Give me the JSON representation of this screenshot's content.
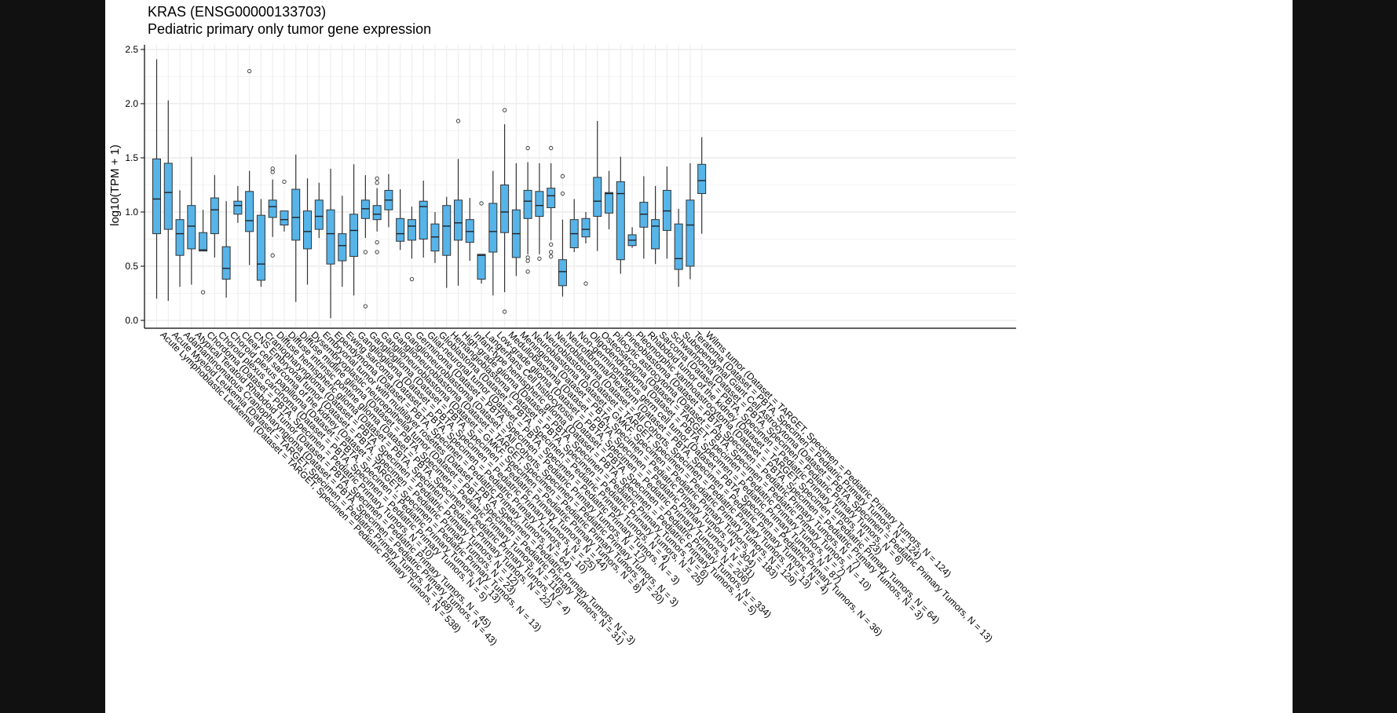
{
  "chart_data": {
    "type": "box",
    "title": "KRAS (ENSG00000133703)",
    "subtitle": "Pediatric primary only tumor gene expression",
    "ylabel": "log10(TPM + 1)",
    "xlabel": "",
    "ylim": [
      -0.05,
      2.55
    ],
    "yticks": [
      0.0,
      0.5,
      1.0,
      1.5,
      2.0,
      2.5
    ],
    "ytick_labels": [
      "0.0",
      "0.5",
      "1.0",
      "1.5",
      "2.0",
      "2.5"
    ],
    "grid": true,
    "legend": "none",
    "box_color": "#56B4E9",
    "categories": [
      "Acute Lymphoblastic Leukemia (Dataset = TARGET, Specimen = Pediatric Primary Tumors, N = 538)",
      "Acute Myeloid Leukemia (Dataset = TARGET, Specimen = Pediatric Primary Tumors, N = 168)",
      "Adamantinomatous Craniopharyngioma (Dataset = PBTA, Specimen = Pediatric Primary Tumors, N = 43)",
      "Atypical Teratoid Rhabdoid Tumor (Dataset = PBTA, Specimen = Pediatric Primary Tumors, N = 45)",
      "Chordoma (Dataset = PBTA, Specimen = Pediatric Primary Tumors, N = 10)",
      "Choroid plexus carcinoma (Dataset = PBTA, Specimen = Pediatric Primary Tumors, N = 5)",
      "Choroid plexus papilloma (Dataset = PBTA, Specimen = Pediatric Primary Tumors, N = 13)",
      "Clear cell sarcoma of the kidney (Dataset = TARGET, Specimen = Pediatric Primary Tumors, N = 13)",
      "CNS Embryonal tumor (Dataset = PBTA, Specimen = Pediatric Primary Tumors, N = 23)",
      "Craniopharyngioma (Dataset = PBTA, Specimen = Pediatric Primary Tumors, N = 12)",
      "Diffuse hemispheric glioma (Dataset = PBTA, Specimen = Pediatric Primary Tumors, N = 22)",
      "Diffuse intrinsic pontine glioma (Dataset = PBTA, Specimen = Pediatric Primary Tumors, N = 4)",
      "Diffuse midline glioma (Dataset = PBTA, Specimen = Pediatric Primary Tumors, N = 116)",
      "Dysembryoplastic neuroepithelial tumor (Dataset = PBTA, Specimen = Pediatric Primary Tumors, N = 31)",
      "Embryonal tumor with multilayer rosettes (Dataset = PBTA, Specimen = Pediatric Primary Tumors, N = 3)",
      "Ependymoma (Dataset = PBTA, Specimen = Pediatric Primary Tumors, N = 64)",
      "Ewing sarcoma (Dataset = PBTA, Specimen = Pediatric Primary Tumors, N = 10)",
      "Ganglioglioma (Dataset = PBTA, Specimen = Pediatric Primary Tumors, N = 25)",
      "Ganglioglioma (Dataset = PBTA, Specimen = Pediatric Primary Tumors, N = 44)",
      "Ganglioneuroblastoma (Dataset = GMKF, Specimen = Pediatric Primary Tumors, N = 8)",
      "Ganglioneuroblastoma (Dataset = TARGET, Specimen = Pediatric Primary Tumors, N = 20)",
      "Ganglioneuroblastoma (Dataset = All Cohorts, Specimen = Pediatric Primary Tumors, N = 3)",
      "Germinoma (Dataset = PBTA, Specimen = Pediatric Primary Tumors, N = 17)",
      "Glial-neuronal tumor (Dataset = PBTA, Specimen = Pediatric Primary Tumors, N = 3)",
      "Glioblastoma (Dataset = PBTA, Specimen = Pediatric Primary Tumors, N = 4)",
      "Hemangioblastoma (Dataset = PBTA, Specimen = Pediatric Primary Tumors, N = 25)",
      "High-grade glioma (Dataset = PBTA, Specimen = Pediatric Primary Tumors, N = 6)",
      "Infant-type hemispheric glioma (Dataset = PBTA, Specimen = Pediatric Primary Tumors, N = 5)",
      "Langerhans Cell histiocytosis (Dataset = PBTA, Specimen = Pediatric Primary Tumors, N = 334)",
      "Low-grade glioma (Dataset = PBTA, Specimen = Pediatric Primary Tumors, N = 206)",
      "Medulloblastoma (Dataset = PBTA, Specimen = Pediatric Primary Tumors, N = 31)",
      "Meningioma (Dataset = PBTA, Specimen = Pediatric Primary Tumors, N = 304)",
      "Neuroblastoma (Dataset = GMKF, Specimen = Pediatric Primary Tumors, N = 183)",
      "Neuroblastoma (Dataset = TARGET, Specimen = Pediatric Primary Tumors, N = 129)",
      "Neuroblastoma (Dataset = All Cohorts, Specimen = Pediatric Primary Tumors, N = 13)",
      "Neurofibroma/Plexiform (Dataset = PBTA, Specimen = Pediatric Primary Tumors, N = 4)",
      "Non-germinomatous germ cell tumor (Dataset = PBTA, Specimen = Pediatric Primary Tumors, N = 36)",
      "Oligodendroglioma (Dataset = PBTA, Specimen = Pediatric Primary Tumors, N = 87)",
      "Osteosarcoma (Dataset = TARGET, Specimen = Pediatric Primary Tumors, N = 7)",
      "Pilocytic astrocytoma (Dataset = PBTA, Specimen = Pediatric Primary Tumors, N = 10)",
      "Pineoblastoma (Dataset = PBTA, Specimen = Pediatric Primary Tumors, N = 7)",
      "Pleomorphic xanthoastrocytoma (Dataset = PBTA, Specimen = Pediatric Primary Tumors, N = 3)",
      "Rhabdoid tumor of the kidney (Dataset = TARGET, Specimen = Pediatric Primary Tumors, N = 64)",
      "Sarcoma (Dataset = PBTA, Specimen = Pediatric Primary Tumors, N = 23)",
      "Schwannoma (Dataset = PBTA, Specimen = Pediatric Primary Tumors, N = 6)",
      "Subependymal Giant Cell Astrocytoma (Dataset = PBTA, Specimen = Pediatric Primary Tumors, N = 13)",
      "Teratoma (Dataset = PBTA, Specimen = Pediatric Primary Tumors, N = 124)",
      "Wilms tumor (Dataset = TARGET, Specimen = Pediatric Primary Tumors, N = 124)"
    ],
    "series": [
      {
        "boxes": [
          {
            "whisker_low": 0.2,
            "q1": 0.8,
            "median": 1.12,
            "q3": 1.49,
            "whisker_high": 2.41,
            "outliers": []
          },
          {
            "whisker_low": 0.18,
            "q1": 0.84,
            "median": 1.18,
            "q3": 1.45,
            "whisker_high": 2.03,
            "outliers": []
          },
          {
            "whisker_low": 0.31,
            "q1": 0.6,
            "median": 0.8,
            "q3": 0.93,
            "whisker_high": 1.2,
            "outliers": []
          },
          {
            "whisker_low": 0.33,
            "q1": 0.66,
            "median": 0.87,
            "q3": 1.06,
            "whisker_high": 1.51,
            "outliers": []
          },
          {
            "whisker_low": 0.64,
            "q1": 0.64,
            "median": 0.65,
            "q3": 0.81,
            "whisker_high": 1.02,
            "outliers": [
              0.26
            ]
          },
          {
            "whisker_low": 0.58,
            "q1": 0.8,
            "median": 1.02,
            "q3": 1.13,
            "whisker_high": 1.34,
            "outliers": []
          },
          {
            "whisker_low": 0.21,
            "q1": 0.38,
            "median": 0.48,
            "q3": 0.68,
            "whisker_high": 1.1,
            "outliers": []
          },
          {
            "whisker_low": 0.9,
            "q1": 0.98,
            "median": 1.06,
            "q3": 1.1,
            "whisker_high": 1.24,
            "outliers": []
          },
          {
            "whisker_low": 0.51,
            "q1": 0.82,
            "median": 0.92,
            "q3": 1.19,
            "whisker_high": 1.38,
            "outliers": [
              2.3
            ]
          },
          {
            "whisker_low": 0.31,
            "q1": 0.37,
            "median": 0.52,
            "q3": 0.97,
            "whisker_high": 1.12,
            "outliers": []
          },
          {
            "whisker_low": 0.77,
            "q1": 0.95,
            "median": 1.05,
            "q3": 1.11,
            "whisker_high": 1.3,
            "outliers": [
              1.4,
              1.37,
              0.6
            ]
          },
          {
            "whisker_low": 0.82,
            "q1": 0.88,
            "median": 0.93,
            "q3": 1.01,
            "whisker_high": 1.01,
            "outliers": [
              1.28
            ]
          },
          {
            "whisker_low": 0.17,
            "q1": 0.74,
            "median": 0.95,
            "q3": 1.21,
            "whisker_high": 1.53,
            "outliers": []
          },
          {
            "whisker_low": 0.33,
            "q1": 0.66,
            "median": 0.82,
            "q3": 1.01,
            "whisker_high": 1.31,
            "outliers": []
          },
          {
            "whisker_low": 0.76,
            "q1": 0.84,
            "median": 0.96,
            "q3": 1.11,
            "whisker_high": 1.27,
            "outliers": []
          },
          {
            "whisker_low": 0.02,
            "q1": 0.52,
            "median": 0.8,
            "q3": 1.02,
            "whisker_high": 1.4,
            "outliers": []
          },
          {
            "whisker_low": 0.31,
            "q1": 0.55,
            "median": 0.69,
            "q3": 0.8,
            "whisker_high": 1.15,
            "outliers": []
          },
          {
            "whisker_low": 0.23,
            "q1": 0.59,
            "median": 0.83,
            "q3": 0.98,
            "whisker_high": 1.44,
            "outliers": []
          },
          {
            "whisker_low": 0.76,
            "q1": 0.94,
            "median": 1.03,
            "q3": 1.11,
            "whisker_high": 1.34,
            "outliers": [
              0.63,
              0.13
            ]
          },
          {
            "whisker_low": 0.82,
            "q1": 0.93,
            "median": 0.98,
            "q3": 1.06,
            "whisker_high": 1.22,
            "outliers": [
              1.31,
              1.27,
              0.72,
              0.63
            ]
          },
          {
            "whisker_low": 0.86,
            "q1": 1.02,
            "median": 1.11,
            "q3": 1.2,
            "whisker_high": 1.35,
            "outliers": []
          },
          {
            "whisker_low": 0.65,
            "q1": 0.73,
            "median": 0.8,
            "q3": 0.94,
            "whisker_high": 1.21,
            "outliers": []
          },
          {
            "whisker_low": 0.57,
            "q1": 0.74,
            "median": 0.87,
            "q3": 0.93,
            "whisker_high": 1.05,
            "outliers": [
              0.38
            ]
          },
          {
            "whisker_low": 0.58,
            "q1": 0.75,
            "median": 1.05,
            "q3": 1.1,
            "whisker_high": 1.29,
            "outliers": []
          },
          {
            "whisker_low": 0.53,
            "q1": 0.64,
            "median": 0.77,
            "q3": 0.89,
            "whisker_high": 1.0,
            "outliers": []
          },
          {
            "whisker_low": 0.3,
            "q1": 0.6,
            "median": 0.87,
            "q3": 1.06,
            "whisker_high": 1.14,
            "outliers": []
          },
          {
            "whisker_low": 0.32,
            "q1": 0.74,
            "median": 0.9,
            "q3": 1.11,
            "whisker_high": 1.49,
            "outliers": [
              1.84
            ]
          },
          {
            "whisker_low": 0.55,
            "q1": 0.72,
            "median": 0.82,
            "q3": 0.93,
            "whisker_high": 1.13,
            "outliers": []
          },
          {
            "whisker_low": 0.34,
            "q1": 0.38,
            "median": 0.6,
            "q3": 0.61,
            "whisker_high": 0.61,
            "outliers": [
              1.08
            ]
          },
          {
            "whisker_low": 0.23,
            "q1": 0.63,
            "median": 0.82,
            "q3": 1.08,
            "whisker_high": 1.38,
            "outliers": []
          },
          {
            "whisker_low": 0.26,
            "q1": 0.81,
            "median": 1.0,
            "q3": 1.25,
            "whisker_high": 1.81,
            "outliers": [
              1.94,
              0.08
            ]
          },
          {
            "whisker_low": 0.41,
            "q1": 0.58,
            "median": 0.8,
            "q3": 1.02,
            "whisker_high": 1.45,
            "outliers": []
          },
          {
            "whisker_low": 0.61,
            "q1": 0.94,
            "median": 1.1,
            "q3": 1.2,
            "whisker_high": 1.46,
            "outliers": [
              1.59,
              0.45,
              0.55,
              0.58
            ]
          },
          {
            "whisker_low": 0.61,
            "q1": 0.96,
            "median": 1.06,
            "q3": 1.19,
            "whisker_high": 1.45,
            "outliers": [
              0.57
            ]
          },
          {
            "whisker_low": 0.74,
            "q1": 1.04,
            "median": 1.15,
            "q3": 1.22,
            "whisker_high": 1.45,
            "outliers": [
              1.59,
              0.7,
              0.63,
              0.59
            ]
          },
          {
            "whisker_low": 0.22,
            "q1": 0.32,
            "median": 0.45,
            "q3": 0.56,
            "whisker_high": 0.93,
            "outliers": [
              1.33,
              1.17
            ]
          },
          {
            "whisker_low": 0.63,
            "q1": 0.67,
            "median": 0.8,
            "q3": 0.93,
            "whisker_high": 1.12,
            "outliers": []
          },
          {
            "whisker_low": 0.71,
            "q1": 0.77,
            "median": 0.84,
            "q3": 0.94,
            "whisker_high": 1.0,
            "outliers": [
              0.34
            ]
          },
          {
            "whisker_low": 0.64,
            "q1": 0.96,
            "median": 1.1,
            "q3": 1.32,
            "whisker_high": 1.84,
            "outliers": []
          },
          {
            "whisker_low": 0.84,
            "q1": 0.99,
            "median": 1.17,
            "q3": 1.18,
            "whisker_high": 1.38,
            "outliers": []
          },
          {
            "whisker_low": 0.43,
            "q1": 0.56,
            "median": 1.17,
            "q3": 1.28,
            "whisker_high": 1.51,
            "outliers": []
          },
          {
            "whisker_low": 0.67,
            "q1": 0.69,
            "median": 0.74,
            "q3": 0.79,
            "whisker_high": 0.86,
            "outliers": []
          },
          {
            "whisker_low": 0.57,
            "q1": 0.86,
            "median": 0.98,
            "q3": 1.09,
            "whisker_high": 1.33,
            "outliers": []
          },
          {
            "whisker_low": 0.52,
            "q1": 0.66,
            "median": 0.87,
            "q3": 0.93,
            "whisker_high": 1.24,
            "outliers": []
          },
          {
            "whisker_low": 0.57,
            "q1": 0.83,
            "median": 1.01,
            "q3": 1.2,
            "whisker_high": 1.42,
            "outliers": []
          },
          {
            "whisker_low": 0.31,
            "q1": 0.47,
            "median": 0.57,
            "q3": 0.89,
            "whisker_high": 1.03,
            "outliers": []
          },
          {
            "whisker_low": 0.38,
            "q1": 0.5,
            "median": 0.88,
            "q3": 1.11,
            "whisker_high": 1.45,
            "outliers": []
          },
          {
            "whisker_low": 0.8,
            "q1": 1.17,
            "median": 1.29,
            "q3": 1.44,
            "whisker_high": 1.69,
            "outliers": []
          }
        ]
      }
    ]
  }
}
